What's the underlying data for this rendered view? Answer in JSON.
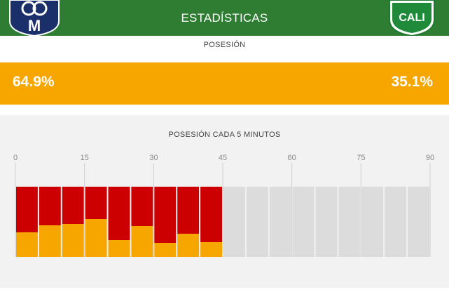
{
  "header": {
    "title": "ESTADÍSTICAS",
    "background_color": "#2e7d32",
    "left_logo": {
      "icon": "millonarios-crest-icon",
      "letters": "M"
    },
    "right_logo": {
      "icon": "deportivo-cali-crest-icon",
      "letters": "CALI"
    }
  },
  "possession": {
    "label": "POSESIÓN",
    "home_value": "64.9%",
    "away_value": "35.1%",
    "bar_color": "#f7a600"
  },
  "chart_data": {
    "type": "bar",
    "title": "POSESIÓN CADA 5 MINUTOS",
    "x_ticks": [
      "0",
      "15",
      "30",
      "45",
      "60",
      "75",
      "90"
    ],
    "xlim": [
      0,
      90
    ],
    "interval_minutes": 5,
    "series": [
      {
        "name": "",
        "color": "#f7a600"
      },
      {
        "name": "",
        "color": "#cc0000"
      }
    ],
    "empty_color": "#dcdcdc",
    "bottom_fraction": [
      0.35,
      0.45,
      0.47,
      0.54,
      0.24,
      0.44,
      0.2,
      0.33,
      0.21,
      null,
      null,
      null,
      null,
      null,
      null,
      null,
      null,
      null
    ],
    "grid": true
  }
}
